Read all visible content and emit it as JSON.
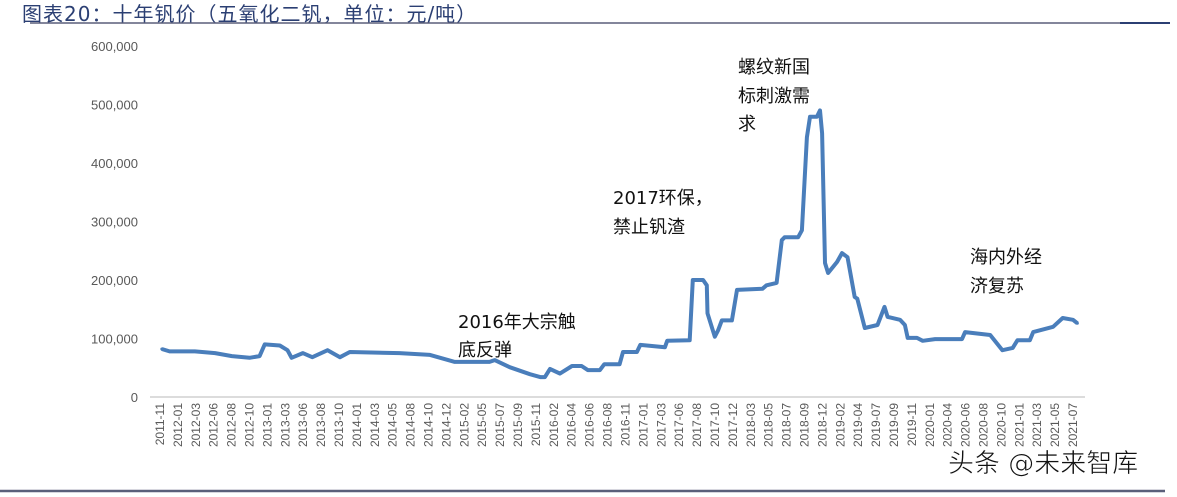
{
  "title": "图表20：十年钒价（五氧化二钒，单位：元/吨）",
  "watermark": "头条 @未来智库",
  "chart_data": {
    "type": "line",
    "title": "图表20：十年钒价（五氧化二钒，单位：元/吨）",
    "xlabel": "",
    "ylabel": "",
    "ylim": [
      0,
      600000
    ],
    "yticks": [
      "0",
      "100,000",
      "200,000",
      "300,000",
      "400,000",
      "500,000",
      "600,000"
    ],
    "grid": false,
    "legend": "none",
    "line_color": "#4a7ebb",
    "xticks": [
      "2011-11",
      "2012-01",
      "2012-03",
      "2012-06",
      "2012-08",
      "2012-10",
      "2013-01",
      "2013-03",
      "2013-06",
      "2013-08",
      "2013-10",
      "2014-01",
      "2014-03",
      "2014-05",
      "2014-08",
      "2014-10",
      "2014-12",
      "2015-02",
      "2015-05",
      "2015-07",
      "2015-09",
      "2015-11",
      "2016-02",
      "2016-04",
      "2016-06",
      "2016-08",
      "2016-11",
      "2017-01",
      "2017-03",
      "2017-06",
      "2017-08",
      "2017-10",
      "2017-12",
      "2018-03",
      "2018-05",
      "2018-07",
      "2018-09",
      "2018-12",
      "2019-02",
      "2019-04",
      "2019-07",
      "2019-09",
      "2019-11",
      "2020-01",
      "2020-04",
      "2020-06",
      "2020-08",
      "2020-10",
      "2021-01",
      "2021-03",
      "2021-05",
      "2021-07"
    ],
    "annotations": [
      {
        "lines": [
          "2016年大宗触",
          "底反弹"
        ]
      },
      {
        "lines": [
          "2017环保，",
          "禁止钒渣"
        ]
      },
      {
        "lines": [
          "螺纹新国",
          "标刺激需",
          "求"
        ]
      },
      {
        "lines": [
          "海内外经",
          "济复苏"
        ]
      }
    ],
    "series": [
      {
        "points": [
          [
            "2011-11-08",
            82000
          ],
          [
            "2011-12-08",
            78000
          ],
          [
            "2012-03-15",
            78000
          ],
          [
            "2012-06-01",
            75000
          ],
          [
            "2012-08-05",
            70000
          ],
          [
            "2012-10-12",
            67000
          ],
          [
            "2012-11-20",
            70000
          ],
          [
            "2012-12-10",
            90000
          ],
          [
            "2013-02-06",
            88000
          ],
          [
            "2013-03-08",
            80000
          ],
          [
            "2013-03-24",
            67000
          ],
          [
            "2013-05-06",
            75000
          ],
          [
            "2013-06-12",
            68000
          ],
          [
            "2013-08-10",
            80000
          ],
          [
            "2013-09-27",
            68000
          ],
          [
            "2013-11-04",
            77000
          ],
          [
            "2014-05-15",
            75000
          ],
          [
            "2014-09-10",
            72000
          ],
          [
            "2014-12-15",
            60000
          ],
          [
            "2015-04-28",
            60000
          ],
          [
            "2015-05-18",
            63000
          ],
          [
            "2015-07-15",
            51000
          ],
          [
            "2015-10-01",
            39000
          ],
          [
            "2015-11-10",
            34000
          ],
          [
            "2015-11-28",
            34000
          ],
          [
            "2015-12-18",
            48000
          ],
          [
            "2016-01-25",
            40000
          ],
          [
            "2016-03-12",
            53000
          ],
          [
            "2016-04-18",
            53000
          ],
          [
            "2016-05-12",
            46000
          ],
          [
            "2016-06-28",
            46000
          ],
          [
            "2016-07-15",
            56000
          ],
          [
            "2016-09-12",
            56000
          ],
          [
            "2016-09-25",
            77000
          ],
          [
            "2016-11-18",
            77000
          ],
          [
            "2016-12-01",
            89000
          ],
          [
            "2017-03-06",
            85000
          ],
          [
            "2017-03-15",
            96000
          ],
          [
            "2017-06-10",
            97000
          ],
          [
            "2017-06-22",
            200000
          ],
          [
            "2017-08-01",
            200000
          ],
          [
            "2017-08-15",
            191000
          ],
          [
            "2017-08-18",
            143000
          ],
          [
            "2017-09-15",
            103000
          ],
          [
            "2017-09-28",
            114000
          ],
          [
            "2017-10-12",
            131000
          ],
          [
            "2017-11-20",
            131000
          ],
          [
            "2017-12-10",
            183000
          ],
          [
            "2018-03-18",
            185000
          ],
          [
            "2018-04-03",
            191000
          ],
          [
            "2018-05-12",
            195000
          ],
          [
            "2018-06-01",
            268000
          ],
          [
            "2018-06-12",
            273000
          ],
          [
            "2018-08-03",
            273000
          ],
          [
            "2018-08-18",
            285000
          ],
          [
            "2018-09-06",
            444000
          ],
          [
            "2018-09-18",
            479000
          ],
          [
            "2018-10-15",
            479000
          ],
          [
            "2018-10-27",
            490000
          ],
          [
            "2018-11-04",
            451000
          ],
          [
            "2018-11-15",
            229000
          ],
          [
            "2018-11-27",
            212000
          ],
          [
            "2019-01-01",
            231000
          ],
          [
            "2019-01-20",
            246000
          ],
          [
            "2019-02-10",
            239000
          ],
          [
            "2019-03-10",
            171000
          ],
          [
            "2019-03-20",
            168000
          ],
          [
            "2019-04-18",
            118000
          ],
          [
            "2019-06-06",
            123000
          ],
          [
            "2019-07-03",
            154000
          ],
          [
            "2019-07-15",
            137000
          ],
          [
            "2019-09-01",
            132000
          ],
          [
            "2019-09-20",
            123000
          ],
          [
            "2019-10-01",
            101000
          ],
          [
            "2019-11-06",
            101000
          ],
          [
            "2019-11-28",
            96000
          ],
          [
            "2020-01-15",
            99000
          ],
          [
            "2020-04-28",
            99000
          ],
          [
            "2020-05-10",
            111000
          ],
          [
            "2020-08-15",
            106000
          ],
          [
            "2020-10-01",
            80000
          ],
          [
            "2020-11-10",
            84000
          ],
          [
            "2020-11-28",
            97000
          ],
          [
            "2021-01-15",
            97000
          ],
          [
            "2021-01-28",
            111000
          ],
          [
            "2021-04-15",
            120000
          ],
          [
            "2021-05-22",
            135000
          ],
          [
            "2021-07-01",
            132000
          ],
          [
            "2021-07-18",
            126000
          ]
        ]
      }
    ]
  }
}
